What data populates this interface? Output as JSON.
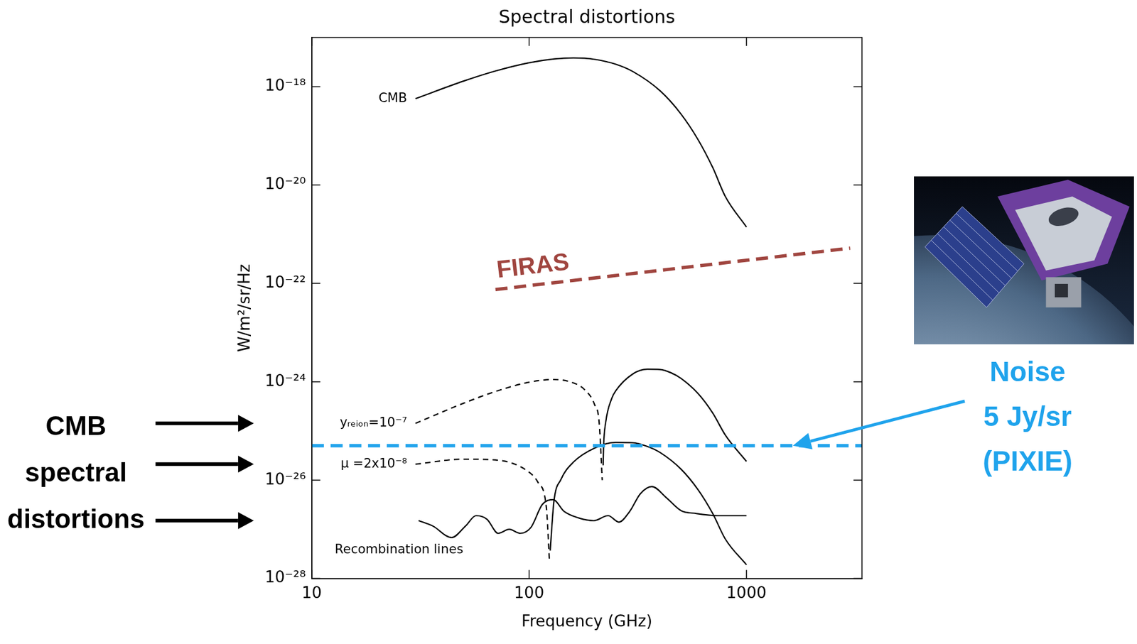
{
  "chart_data": {
    "type": "line",
    "title": "Spectral distortions",
    "x_label": "Frequency (GHz)",
    "y_label": "W/m²/sr/Hz",
    "log": true,
    "grid": false,
    "xlim": [
      10,
      3400
    ],
    "xticks": [
      10,
      100,
      1000
    ],
    "ylim": [
      1e-28,
      1e-17
    ],
    "yticks": [
      {
        "value": 1e-28,
        "label": "10⁻²⁸"
      },
      {
        "value": 1e-26,
        "label": "10⁻²⁶"
      },
      {
        "value": 1e-24,
        "label": "10⁻²⁴"
      },
      {
        "value": 1e-22,
        "label": "10⁻²²"
      },
      {
        "value": 1e-20,
        "label": "10⁻²⁰"
      },
      {
        "value": 1e-18,
        "label": "10⁻¹⁸"
      }
    ],
    "series": [
      {
        "name": "CMB",
        "color": "#000000",
        "line_style": "solid",
        "x": [
          30,
          50,
          70,
          100,
          130,
          160,
          200,
          250,
          300,
          400,
          500,
          600,
          700,
          800,
          1000
        ],
        "values": [
          5.7e-19,
          1.3e-18,
          2.08e-18,
          3.06e-18,
          3.65e-18,
          3.83e-18,
          3.59e-18,
          2.86e-18,
          2.03e-18,
          8.26e-19,
          2.77e-19,
          8.24e-20,
          2.25e-20,
          5.8e-21,
          1.4e-21
        ]
      },
      {
        "name": "FIRAS",
        "color": "#a0453f",
        "line_style": "dashed",
        "x": [
          70,
          3000
        ],
        "values": [
          7.5e-23,
          5.2e-22
        ]
      },
      {
        "color": "#1fa3ec",
        "line_style": "dashed",
        "x": [
          10,
          3400
        ],
        "values": [
          5e-26,
          5e-26
        ]
      },
      {
        "name": "yᵣₑᵢₒₙ=10⁻⁷",
        "color": "#000000",
        "line_style": "dashed",
        "x": [
          30,
          50,
          70,
          100,
          130,
          160,
          180,
          200,
          210,
          217
        ],
        "values": [
          1.43e-25,
          3.67e-25,
          6.34e-25,
          9.8e-25,
          1.11e-24,
          9.46e-25,
          6.9e-25,
          3.45e-25,
          1.48e-25,
          1e-26
        ]
      },
      {
        "color": "#000000",
        "line_style": "solid",
        "x": [
          219,
          220,
          225,
          240,
          250,
          300,
          350,
          400,
          450,
          500,
          600,
          700,
          800,
          1000
        ],
        "values": [
          2e-26,
          4.7e-26,
          1.48e-25,
          4.6e-25,
          6.49e-25,
          1.44e-24,
          1.8e-24,
          1.78e-24,
          1.52e-24,
          1.17e-24,
          5.7e-25,
          2.3e-25,
          8.2e-26,
          2.4e-26
        ]
      },
      {
        "name": "μ =2x10⁻⁸",
        "color": "#000000",
        "line_style": "dashed",
        "x": [
          30,
          50,
          70,
          100,
          110,
          120,
          124
        ],
        "values": [
          2.11e-26,
          2.67e-26,
          2.57e-26,
          1.45e-26,
          8.9e-27,
          2.8e-27,
          2.3e-28
        ]
      },
      {
        "color": "#000000",
        "line_style": "solid",
        "x": [
          125,
          130,
          140,
          160,
          200,
          250,
          300,
          350,
          400,
          500,
          600,
          700,
          800,
          1000
        ],
        "values": [
          3.7e-28,
          3.66e-27,
          1.03e-26,
          2.33e-26,
          4.49e-26,
          5.84e-26,
          5.77e-26,
          4.85e-26,
          3.66e-26,
          1.67e-26,
          6.3e-27,
          2.08e-27,
          6.3e-28,
          1.9e-28
        ]
      },
      {
        "name": "Recombination lines",
        "color": "#000000",
        "line_style": "solid",
        "x": [
          31,
          36,
          44,
          51,
          57,
          64,
          72,
          81,
          91,
          102,
          115,
          129,
          145,
          169,
          198,
          231,
          259,
          290,
          325,
          367,
          428,
          500,
          585,
          737,
          860,
          1000
        ],
        "values": [
          1.5e-27,
          1.17e-27,
          6.8e-28,
          1.17e-27,
          1.9e-27,
          1.6e-27,
          8.3e-28,
          1e-27,
          8.3e-28,
          1.1e-27,
          3.2e-27,
          4e-27,
          2.3e-27,
          1.7e-27,
          1.5e-27,
          1.9e-27,
          1.4e-27,
          2.3e-27,
          5.3e-27,
          7.4e-27,
          4.4e-27,
          2.4e-27,
          2.1e-27,
          1.9e-27,
          1.9e-27,
          1.9e-27
        ]
      }
    ],
    "annotations": [
      {
        "lines": [
          "CMB",
          "spectral",
          "distortions"
        ],
        "color": "#000000"
      },
      {
        "lines": [
          "Noise",
          "5 Jy/sr",
          "(PIXIE)"
        ],
        "color": "#1fa3ec"
      }
    ]
  }
}
